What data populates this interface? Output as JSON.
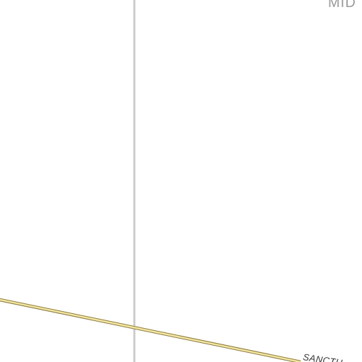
{
  "map": {
    "labels": {
      "place": "MID",
      "road": "SANCTU"
    },
    "colors": {
      "background": "#ffffff",
      "boundary_line": "#cccccc",
      "road_fill": "#f3e6a4",
      "road_casing": "#8a7a3a",
      "place_text": "#9a9a9a",
      "road_text": "#333333"
    }
  }
}
